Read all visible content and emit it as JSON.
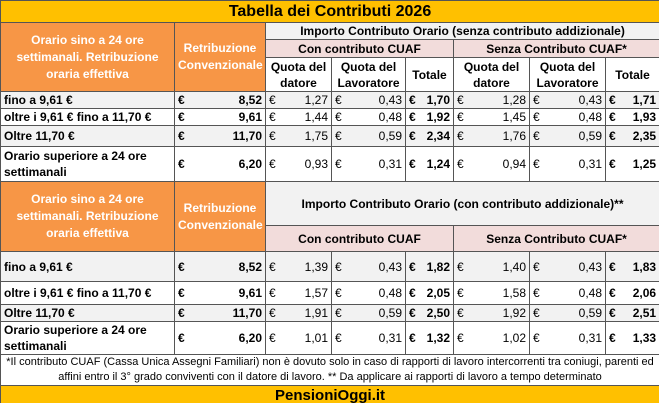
{
  "title": "Tabella dei Contributi 2026",
  "colors": {
    "orange": "#F79646",
    "yellow": "#FFC000",
    "pink": "#F2DCDB",
    "gray": "#F2F2F2"
  },
  "currency": "€",
  "header": {
    "col1": "Orario sino a 24 ore settimanali. Retribuzione oraria effettiva",
    "col2": "Retribuzione Convenzionale",
    "group1": "Importo Contributo Orario (senza contributo addizionale)",
    "group2": "Importo Contributo Orario (con contributo addizionale)**",
    "with_cuaf": "Con contributo CUAF",
    "without_cuaf": "Senza Contributo CUAF*",
    "quota_datore": "Quota del datore",
    "quota_lavoratore": "Quota del Lavoratore",
    "totale": "Totale"
  },
  "table1": [
    {
      "label": "fino a 9,61 €",
      "retr": "8,52",
      "c_dat": "1,27",
      "c_lav": "0,43",
      "c_tot": "1,70",
      "s_dat": "1,28",
      "s_lav": "0,43",
      "s_tot": "1,71"
    },
    {
      "label": "oltre i 9,61 € fino a 11,70 €",
      "retr": "9,61",
      "c_dat": "1,44",
      "c_lav": "0,48",
      "c_tot": "1,92",
      "s_dat": "1,45",
      "s_lav": "0,48",
      "s_tot": "1,93"
    },
    {
      "label": "Oltre 11,70 €",
      "retr": "11,70",
      "c_dat": "1,75",
      "c_lav": "0,59",
      "c_tot": "2,34",
      "s_dat": "1,76",
      "s_lav": "0,59",
      "s_tot": "2,35"
    },
    {
      "label": "Orario superiore a 24 ore settimanali",
      "retr": "6,20",
      "c_dat": "0,93",
      "c_lav": "0,31",
      "c_tot": "1,24",
      "s_dat": "0,94",
      "s_lav": "0,31",
      "s_tot": "1,25"
    }
  ],
  "table2": [
    {
      "label": "fino a 9,61 €",
      "retr": "8,52",
      "c_dat": "1,39",
      "c_lav": "0,43",
      "c_tot": "1,82",
      "s_dat": "1,40",
      "s_lav": "0,43",
      "s_tot": "1,83"
    },
    {
      "label": "oltre i 9,61 € fino a 11,70 €",
      "retr": "9,61",
      "c_dat": "1,57",
      "c_lav": "0,48",
      "c_tot": "2,05",
      "s_dat": "1,58",
      "s_lav": "0,48",
      "s_tot": "2,06"
    },
    {
      "label": "Oltre 11,70 €",
      "retr": "11,70",
      "c_dat": "1,91",
      "c_lav": "0,59",
      "c_tot": "2,50",
      "s_dat": "1,92",
      "s_lav": "0,59",
      "s_tot": "2,51"
    },
    {
      "label": "Orario superiore a 24 ore settimanali",
      "retr": "6,20",
      "c_dat": "1,01",
      "c_lav": "0,31",
      "c_tot": "1,32",
      "s_dat": "1,02",
      "s_lav": "0,31",
      "s_tot": "1,33"
    }
  ],
  "footnote": "*Il contributo CUAF (Cassa Unica Assegni Familiari) non è dovuto solo in caso di rapporti di lavoro intercorrenti tra coniugi, parenti ed affini entro il 3° grado conviventi con il datore di lavoro. ** Da applicare ai rapporti di lavoro a tempo determinato",
  "footer": "PensioniOggi.it"
}
